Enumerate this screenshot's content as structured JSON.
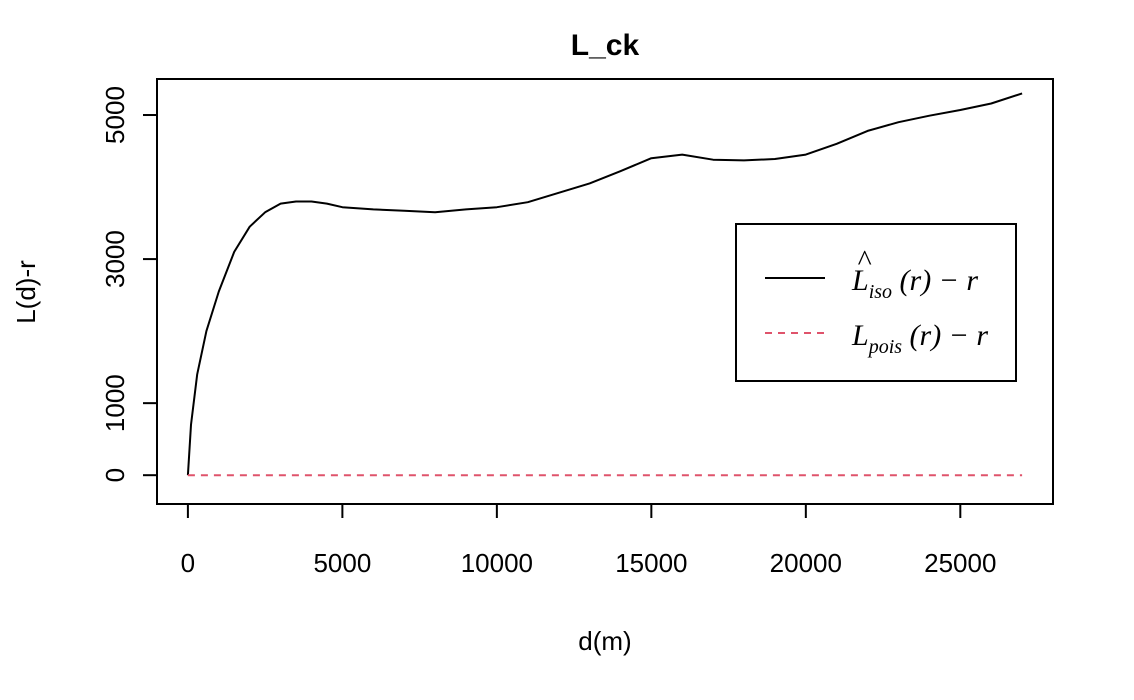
{
  "chart_data": {
    "type": "line",
    "title": "L_ck",
    "xlabel": "d(m)",
    "ylabel": "L(d)-r",
    "xlim": [
      -1000,
      28000
    ],
    "ylim": [
      -400,
      5500
    ],
    "xticks": [
      0,
      5000,
      10000,
      15000,
      20000,
      25000
    ],
    "yticks": [
      0,
      1000,
      3000,
      5000
    ],
    "grid": false,
    "legend_position": "right",
    "legend": [
      {
        "main": "L",
        "hat": "^",
        "sub": "iso",
        "rest": "(r) − r",
        "color": "#000000",
        "dash": "solid"
      },
      {
        "main": "L",
        "hat": "",
        "sub": "pois",
        "rest": "(r) − r",
        "color": "#DF536B",
        "dash": "dashed"
      }
    ],
    "series": [
      {
        "color": "#000000",
        "dash": "solid",
        "x": [
          0,
          100,
          300,
          600,
          1000,
          1500,
          2000,
          2500,
          3000,
          3500,
          4000,
          4500,
          5000,
          6000,
          7000,
          8000,
          9000,
          10000,
          11000,
          12000,
          13000,
          14000,
          15000,
          16000,
          17000,
          18000,
          19000,
          20000,
          21000,
          22000,
          23000,
          24000,
          25000,
          26000,
          27000
        ],
        "y": [
          0,
          700,
          1400,
          2000,
          2550,
          3100,
          3450,
          3650,
          3770,
          3800,
          3800,
          3770,
          3720,
          3690,
          3670,
          3650,
          3690,
          3720,
          3790,
          3920,
          4050,
          4220,
          4400,
          4450,
          4380,
          4370,
          4390,
          4450,
          4600,
          4780,
          4900,
          4990,
          5070,
          5160,
          5300
        ]
      },
      {
        "color": "#DF536B",
        "dash": "dashed",
        "x": [
          0,
          27000
        ],
        "y": [
          0,
          0
        ]
      }
    ]
  }
}
